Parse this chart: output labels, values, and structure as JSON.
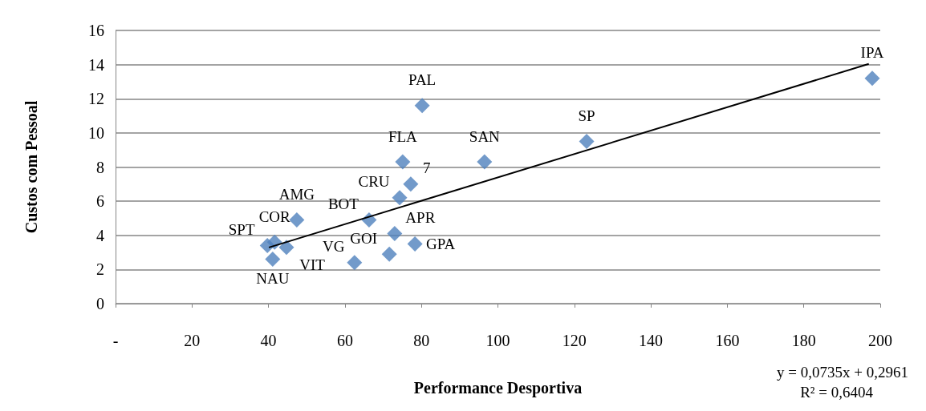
{
  "chart_data": {
    "type": "scatter",
    "xlabel": "Performance Desportiva",
    "ylabel": "Custos com Pessoal",
    "xlim": [
      0,
      200
    ],
    "xticks": [
      {
        "value": 0,
        "label": "-"
      },
      20,
      40,
      60,
      80,
      100,
      120,
      140,
      160,
      180,
      200
    ],
    "ylim": [
      0,
      16
    ],
    "yticks": [
      0,
      2,
      4,
      6,
      8,
      10,
      12,
      14,
      16
    ],
    "grid": "y",
    "marker": "diamond",
    "series": [
      {
        "color": "#4f81bd",
        "x": [
          197.9,
          80.2,
          123.2,
          96.5,
          75.1,
          77.2,
          74.3,
          66.3,
          73.0,
          78.3,
          71.6,
          62.5,
          47.4,
          39.7,
          41.6,
          44.7,
          41.1
        ],
        "values": [
          13.2,
          11.6,
          9.5,
          8.3,
          8.3,
          7.0,
          6.2,
          4.9,
          4.1,
          3.5,
          2.9,
          2.4,
          4.9,
          3.4,
          3.6,
          3.3,
          2.6
        ]
      },
      {
        "type": "line",
        "color": "#000000",
        "marker": "none",
        "x": [
          40.1,
          197
        ],
        "values": [
          3.29,
          14.04
        ]
      }
    ],
    "annotations": [
      {
        "text": "IPA",
        "x": 197.9,
        "y": 13.2
      },
      {
        "text": "PAL",
        "x": 80.2,
        "y": 11.6
      },
      {
        "text": "SP",
        "x": 123.2,
        "y": 9.5
      },
      {
        "text": "SAN",
        "x": 96.5,
        "y": 8.3
      },
      {
        "text": "FLA",
        "x": 75.1,
        "y": 8.3
      },
      {
        "text": "7",
        "x": 77.2,
        "y": 7.0
      },
      {
        "text": "CRU",
        "x": 74.3,
        "y": 6.2
      },
      {
        "text": "BOT",
        "x": 66.3,
        "y": 4.9
      },
      {
        "text": "APR",
        "x": 73.0,
        "y": 4.1
      },
      {
        "text": "GPA",
        "x": 78.3,
        "y": 3.5
      },
      {
        "text": "GOI",
        "x": 71.6,
        "y": 2.9
      },
      {
        "text": "VG",
        "x": 62.5,
        "y": 2.4
      },
      {
        "text": "AMG",
        "x": 47.4,
        "y": 4.9
      },
      {
        "text": "COR",
        "x": 41.6,
        "y": 3.6
      },
      {
        "text": "SPT",
        "x": 39.7,
        "y": 3.4
      },
      {
        "text": "NAU",
        "x": 41.1,
        "y": 2.6
      },
      {
        "text": "VIT",
        "x": 44.7,
        "y": 3.3
      },
      "y = 0,0735x + 0,2961",
      "R² = 0,6404"
    ]
  }
}
